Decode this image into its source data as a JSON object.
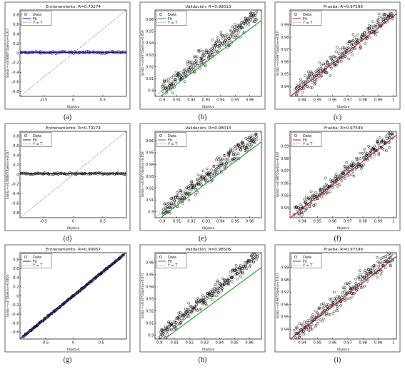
{
  "figure": {
    "grid_rows": 3,
    "grid_cols": 3
  },
  "chart_data": [
    {
      "id": "a",
      "type": "scatter",
      "caption": "(a)",
      "title": "Entrenamiento: R=0.79274",
      "xlabel": "Objetivo",
      "ylabel": "Salida ~=0.0008*Objetivo+0.017",
      "xlim": [
        -0.9,
        0.9
      ],
      "ylim": [
        -0.9,
        0.9
      ],
      "xticks": [
        -0.5,
        0,
        0.5
      ],
      "xtick_labels": [
        "-0.5",
        "0",
        "0.5"
      ],
      "yticks": [
        -0.8,
        -0.6,
        -0.4,
        -0.2,
        0,
        0.2,
        0.4,
        0.6,
        0.8
      ],
      "ytick_labels": [
        "-0.8",
        "-0.6",
        "-0.4",
        "-0.2",
        "0",
        "0.2",
        "0.4",
        "0.6",
        "0.8"
      ],
      "legend": {
        "position": "top-left",
        "entries": [
          "Data",
          "Fit",
          "Y = T"
        ]
      },
      "fit_color": "#1a1aa6",
      "fit": {
        "slope": 0.0008,
        "intercept": 0.017
      },
      "yt_line": true,
      "series": [
        {
          "name": "Data",
          "marker": "circle",
          "x_range": [
            -0.9,
            0.9
          ],
          "model": "flat",
          "y_center": 0.017,
          "noise": 0.01,
          "n": 120
        }
      ]
    },
    {
      "id": "b",
      "type": "scatter",
      "caption": "(b)",
      "title": "Validación: R=0.98013",
      "xlabel": "Objetivo",
      "ylabel": "Salida ~=0.93*Objetivo+0.059",
      "xlim": [
        0.895,
        0.968
      ],
      "ylim": [
        0.895,
        0.968
      ],
      "xticks": [
        0.9,
        0.91,
        0.92,
        0.93,
        0.94,
        0.95,
        0.96
      ],
      "xtick_labels": [
        "0.9",
        "0.91",
        "0.92",
        "0.93",
        "0.94",
        "0.95",
        "0.96"
      ],
      "yticks": [
        0.9,
        0.91,
        0.92,
        0.93,
        0.94,
        0.95,
        0.96
      ],
      "ytick_labels": [
        "0.9",
        "0.91",
        "0.92",
        "0.93",
        "0.94",
        "0.95",
        "0.96"
      ],
      "legend": {
        "position": "top-left",
        "entries": [
          "Data",
          "Fit",
          "Y = T"
        ]
      },
      "fit_color": "#1a9e1a",
      "fit": {
        "slope": 0.93,
        "intercept": 0.059
      },
      "yt_line": true,
      "series": [
        {
          "name": "Data",
          "marker": "circle",
          "x_range": [
            0.9,
            0.965
          ],
          "model": "linear",
          "noise": 0.0035,
          "n": 260
        }
      ]
    },
    {
      "id": "c",
      "type": "scatter",
      "caption": "(c)",
      "title": "Prueba: R=0.97599",
      "xlabel": "Objetivo",
      "ylabel": "Salida ~=0.96*Objetivo+0.037",
      "xlim": [
        0.932,
        1.002
      ],
      "ylim": [
        0.932,
        1.002
      ],
      "xticks": [
        0.94,
        0.95,
        0.96,
        0.97,
        0.98,
        0.99,
        1
      ],
      "xtick_labels": [
        "0.94",
        "0.95",
        "0.96",
        "0.97",
        "0.98",
        "0.99",
        "1"
      ],
      "yticks": [
        0.94,
        0.95,
        0.96,
        0.97,
        0.98,
        0.99
      ],
      "ytick_labels": [
        "0.94",
        "0.95",
        "0.96",
        "0.97",
        "0.98",
        "0.99"
      ],
      "legend": {
        "position": "top-left",
        "entries": [
          "Data",
          "Fit",
          "Y = T"
        ]
      },
      "fit_color": "#c01818",
      "fit": {
        "slope": 0.96,
        "intercept": 0.037
      },
      "yt_line": true,
      "series": [
        {
          "name": "Data",
          "marker": "circle",
          "x_range": [
            0.935,
            1.0
          ],
          "model": "linear",
          "noise": 0.0035,
          "n": 260
        }
      ]
    },
    {
      "id": "d",
      "type": "scatter",
      "caption": "(d)",
      "title": "Entrenamiento: R=0.79274",
      "xlabel": "Objetivo",
      "ylabel": "Salida ~=0.0008*Objetivo+0.017",
      "xlim": [
        -0.9,
        0.9
      ],
      "ylim": [
        -0.9,
        0.9
      ],
      "xticks": [
        -0.5,
        0,
        0.5
      ],
      "xtick_labels": [
        "-0.5",
        "0",
        "0.5"
      ],
      "yticks": [
        -0.8,
        -0.6,
        -0.4,
        -0.2,
        0,
        0.2,
        0.4,
        0.6,
        0.8
      ],
      "ytick_labels": [
        "-0.8",
        "-0.6",
        "-0.4",
        "-0.2",
        "0",
        "0.2",
        "0.4",
        "0.6",
        "0.8"
      ],
      "legend": {
        "position": "top-left",
        "entries": [
          "Data",
          "Fit",
          "Y = T"
        ]
      },
      "fit_color": "#1a1aa6",
      "fit": {
        "slope": 0.0008,
        "intercept": 0.017
      },
      "yt_line": true,
      "series": [
        {
          "name": "Data",
          "marker": "circle",
          "x_range": [
            -0.9,
            0.9
          ],
          "model": "flat",
          "y_center": 0.017,
          "noise": 0.01,
          "n": 120
        }
      ]
    },
    {
      "id": "e",
      "type": "scatter",
      "caption": "(e)",
      "title": "Validación: R=0.98013",
      "xlabel": "Objetivo",
      "ylabel": "Salida ~=0.93*Objetivo+0.059",
      "xlim": [
        0.895,
        0.968
      ],
      "ylim": [
        0.895,
        0.968
      ],
      "xticks": [
        0.9,
        0.91,
        0.92,
        0.93,
        0.94,
        0.95,
        0.96
      ],
      "xtick_labels": [
        "0.9",
        "0.91",
        "0.92",
        "0.93",
        "0.94",
        "0.95",
        "0.96"
      ],
      "yticks": [
        0.9,
        0.91,
        0.92,
        0.93,
        0.94,
        0.95,
        0.96
      ],
      "ytick_labels": [
        "0.9",
        "0.91",
        "0.92",
        "0.93",
        "0.94",
        "0.95",
        "0.96"
      ],
      "legend": {
        "position": "top-left",
        "entries": [
          "Data",
          "Fit",
          "Y = T"
        ]
      },
      "fit_color": "#1a9e1a",
      "fit": {
        "slope": 0.93,
        "intercept": 0.059
      },
      "yt_line": true,
      "series": [
        {
          "name": "Data",
          "marker": "circle",
          "x_range": [
            0.9,
            0.965
          ],
          "model": "linear",
          "noise": 0.0035,
          "n": 260
        }
      ]
    },
    {
      "id": "f",
      "type": "scatter",
      "caption": "(f)",
      "title": "Prueba: R=0.97599",
      "xlabel": "Objetivo",
      "ylabel": "Salida ~=0.96*Objetivo+0.037",
      "xlim": [
        0.932,
        1.002
      ],
      "ylim": [
        0.932,
        1.002
      ],
      "xticks": [
        0.94,
        0.95,
        0.96,
        0.97,
        0.98,
        0.99,
        1
      ],
      "xtick_labels": [
        "0.94",
        "0.95",
        "0.96",
        "0.97",
        "0.98",
        "0.99",
        "1"
      ],
      "yticks": [
        0.94,
        0.95,
        0.96,
        0.97,
        0.98,
        0.99
      ],
      "ytick_labels": [
        "0.94",
        "0.95",
        "0.96",
        "0.97",
        "0.98",
        "0.99"
      ],
      "legend": {
        "position": "top-left",
        "entries": [
          "Data",
          "Fit",
          "Y = T"
        ]
      },
      "fit_color": "#c01818",
      "fit": {
        "slope": 0.96,
        "intercept": 0.037
      },
      "yt_line": true,
      "series": [
        {
          "name": "Data",
          "marker": "circle",
          "x_range": [
            0.935,
            1.0
          ],
          "model": "linear",
          "noise": 0.0035,
          "n": 260
        }
      ]
    },
    {
      "id": "g",
      "type": "scatter",
      "caption": "(g)",
      "title": "Entrenamiento: R=0.99957",
      "xlabel": "Objetivo",
      "ylabel": "Salida ~=1*Objetivo+0.0053",
      "xlim": [
        -0.95,
        0.95
      ],
      "ylim": [
        -0.95,
        0.95
      ],
      "xticks": [
        -0.5,
        0,
        0.5
      ],
      "xtick_labels": [
        "-0.5",
        "0",
        "0.5"
      ],
      "yticks": [
        -0.8,
        -0.6,
        -0.4,
        -0.2,
        0,
        0.2,
        0.4,
        0.6,
        0.8
      ],
      "ytick_labels": [
        "-0.8",
        "-0.6",
        "-0.4",
        "-0.2",
        "0",
        "0.2",
        "0.4",
        "0.6",
        "0.8"
      ],
      "legend": {
        "position": "top-left",
        "entries": [
          "Data",
          "Fit",
          "Y = T"
        ]
      },
      "fit_color": "#1a1aa6",
      "fit": {
        "slope": 1,
        "intercept": 0.0053
      },
      "yt_line": true,
      "series": [
        {
          "name": "Data",
          "marker": "circle",
          "x_range": [
            -0.9,
            0.9
          ],
          "model": "linear",
          "noise": 0.008,
          "n": 260
        }
      ]
    },
    {
      "id": "h",
      "type": "scatter",
      "caption": "(h)",
      "title": "Validación: R=0.98505",
      "xlabel": "Objetivo",
      "ylabel": "Salida ~=0.91*Objetivo+0.075",
      "xlim": [
        0.897,
        0.968
      ],
      "ylim": [
        0.897,
        0.968
      ],
      "xticks": [
        0.9,
        0.91,
        0.92,
        0.93,
        0.94,
        0.95,
        0.96
      ],
      "xtick_labels": [
        "0.9",
        "0.91",
        "0.92",
        "0.93",
        "0.94",
        "0.95",
        "0.96"
      ],
      "yticks": [
        0.9,
        0.91,
        0.92,
        0.93,
        0.94,
        0.95,
        0.96
      ],
      "ytick_labels": [
        "0.9",
        "0.91",
        "0.92",
        "0.93",
        "0.94",
        "0.95",
        "0.96"
      ],
      "legend": {
        "position": "top-left",
        "entries": [
          "Data",
          "Fit",
          "Y = T"
        ]
      },
      "fit_color": "#1a9e1a",
      "fit": {
        "slope": 0.91,
        "intercept": 0.075
      },
      "yt_line": true,
      "series": [
        {
          "name": "Data",
          "marker": "circle",
          "x_range": [
            0.9,
            0.965
          ],
          "model": "linear",
          "noise": 0.003,
          "n": 260
        }
      ]
    },
    {
      "id": "i",
      "type": "scatter",
      "caption": "(i)",
      "title": "Prueba: R=0.97599",
      "xlabel": "Objetivo",
      "ylabel": "Salida ~=0.96*Objetivo+0.037",
      "xlim": [
        0.932,
        1.002
      ],
      "ylim": [
        0.932,
        1.002
      ],
      "xticks": [
        0.94,
        0.95,
        0.96,
        0.97,
        0.98,
        0.99,
        1
      ],
      "xtick_labels": [
        "0.94",
        "0.95",
        "0.96",
        "0.97",
        "0.98",
        "0.99",
        "1"
      ],
      "yticks": [
        0.94,
        0.95,
        0.96,
        0.97,
        0.98,
        0.99
      ],
      "ytick_labels": [
        "0.94",
        "0.95",
        "0.96",
        "0.97",
        "0.98",
        "0.99"
      ],
      "legend": {
        "position": "top-left",
        "entries": [
          "Data",
          "Fit",
          "Y = T"
        ]
      },
      "fit_color": "#c01818",
      "fit": {
        "slope": 0.96,
        "intercept": 0.037
      },
      "yt_line": true,
      "series": [
        {
          "name": "Data",
          "marker": "circle",
          "x_range": [
            0.935,
            1.0
          ],
          "model": "linear",
          "noise": 0.0035,
          "n": 260
        }
      ]
    }
  ]
}
